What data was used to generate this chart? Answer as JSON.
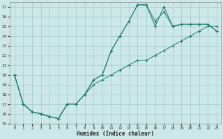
{
  "xlabel": "Humidex (Indice chaleur)",
  "bg_color": "#cde8e8",
  "grid_color": "#a0c8c8",
  "line_color": "#1a7a6e",
  "xlim": [
    -0.5,
    23.5
  ],
  "ylim": [
    15,
    27.5
  ],
  "yticks": [
    15,
    16,
    17,
    18,
    19,
    20,
    21,
    22,
    23,
    24,
    25,
    26,
    27
  ],
  "xticks": [
    0,
    1,
    2,
    3,
    4,
    5,
    6,
    7,
    8,
    9,
    10,
    11,
    12,
    13,
    14,
    15,
    16,
    17,
    18,
    19,
    20,
    21,
    22,
    23
  ],
  "series": [
    {
      "x": [
        0,
        1,
        2,
        3,
        4,
        5,
        6,
        7,
        8,
        9,
        10,
        11,
        12,
        13,
        14,
        15,
        16,
        17,
        18,
        19,
        20,
        21,
        22,
        23
      ],
      "y": [
        20,
        17,
        16.2,
        16,
        15.7,
        15.5,
        17,
        17,
        18,
        19.5,
        20,
        22.5,
        24,
        25.5,
        27.2,
        27.2,
        25,
        27,
        25,
        25.2,
        25.2,
        25.2,
        25.2,
        24.5
      ]
    },
    {
      "x": [
        0,
        1,
        2,
        3,
        4,
        5,
        6,
        7,
        8,
        9,
        10,
        11,
        12,
        13,
        14,
        15,
        16,
        17,
        18,
        19,
        20,
        21,
        22,
        23
      ],
      "y": [
        20,
        17,
        16.2,
        16,
        15.7,
        15.5,
        17,
        17,
        18,
        19.5,
        20,
        22.5,
        24,
        25.5,
        27.2,
        27.2,
        25.5,
        26.5,
        25,
        25.2,
        25.2,
        25.2,
        25.2,
        24.5
      ]
    },
    {
      "x": [
        0,
        1,
        2,
        3,
        4,
        5,
        6,
        7,
        8,
        9,
        10,
        11,
        12,
        13,
        14,
        15,
        16,
        17,
        18,
        19,
        20,
        21,
        22,
        23
      ],
      "y": [
        20,
        17,
        16.2,
        16,
        15.7,
        15.5,
        17,
        17,
        18,
        19,
        19.5,
        20,
        20.5,
        21,
        21.5,
        21.5,
        22,
        22.5,
        23,
        23.5,
        24,
        24.5,
        25,
        25
      ]
    }
  ]
}
